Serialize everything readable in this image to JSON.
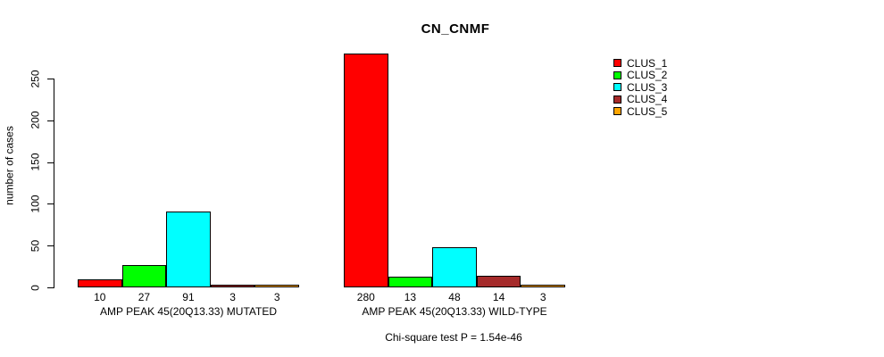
{
  "figure": {
    "title": "CN_CNMF",
    "note": "Chi-square test P = 1.54e-46"
  },
  "chart_data": {
    "type": "bar",
    "title": "CN_CNMF",
    "xlabel": "",
    "ylabel": "number of cases",
    "ylim": [
      0,
      250
    ],
    "yticks": [
      0,
      50,
      100,
      150,
      200,
      250
    ],
    "grid": false,
    "background": "#FFFFFF",
    "axis_color": "#000000",
    "bar_value_labels": true,
    "legend_position": "right",
    "categories": [
      "AMP PEAK 45(20Q13.33) MUTATED",
      "AMP PEAK 45(20Q13.33) WILD-TYPE"
    ],
    "series": [
      {
        "name": "CLUS_1",
        "color": "#FF0000",
        "values": [
          10,
          280
        ]
      },
      {
        "name": "CLUS_2",
        "color": "#00FF00",
        "values": [
          27,
          13
        ]
      },
      {
        "name": "CLUS_3",
        "color": "#00FFFF",
        "values": [
          91,
          48
        ]
      },
      {
        "name": "CLUS_4",
        "color": "#A52A2A",
        "values": [
          3,
          14
        ]
      },
      {
        "name": "CLUS_5",
        "color": "#FFA500",
        "values": [
          3,
          3
        ]
      }
    ],
    "annotation": "Chi-square test P = 1.54e-46"
  }
}
